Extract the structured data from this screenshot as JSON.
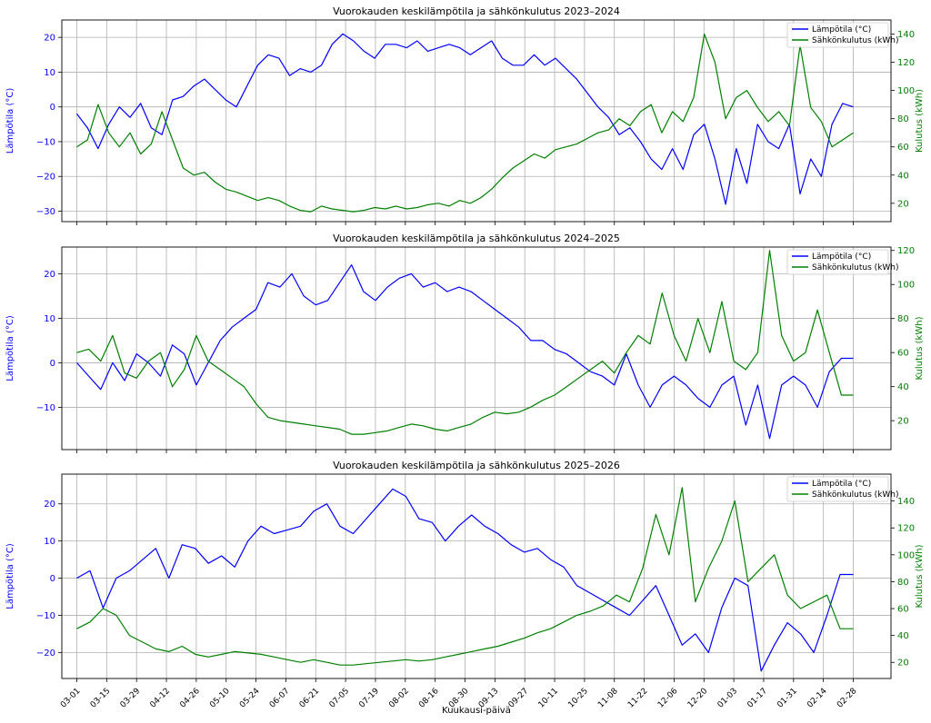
{
  "figure": {
    "xlabel": "Kuukausi-päivä",
    "ylabel_left": "Lämpötila (°C)",
    "ylabel_right": "Kulutus (kWh)",
    "temp_color": "#0000ff",
    "cons_color": "#008000"
  },
  "chart_data": [
    {
      "type": "line",
      "title": "Vuorokauden keskilämpötila ja sähkönkulutus 2023–2024",
      "x_ticks": [
        "03-01",
        "03-15",
        "03-29",
        "04-12",
        "04-26",
        "05-10",
        "05-24",
        "06-07",
        "06-21",
        "07-05",
        "07-19",
        "08-02",
        "08-16",
        "08-30",
        "09-13",
        "09-27",
        "10-11",
        "10-25",
        "11-08",
        "11-22",
        "12-06",
        "12-20",
        "01-03",
        "01-17",
        "01-31",
        "02-14",
        "02-28"
      ],
      "ylim_left": [
        -33,
        25
      ],
      "y_ticks_left": [
        -30,
        -20,
        -10,
        0,
        10,
        20
      ],
      "ylim_right": [
        7,
        150
      ],
      "y_ticks_right": [
        20,
        40,
        60,
        80,
        100,
        120,
        140
      ],
      "grid": true,
      "legend_position": "top-right",
      "series": [
        {
          "name": "Lämpötila (°C)",
          "axis": "left",
          "values": [
            -2,
            -6,
            -12,
            -5,
            0,
            -3,
            1,
            -6,
            -8,
            2,
            3,
            6,
            8,
            5,
            2,
            0,
            6,
            12,
            15,
            14,
            9,
            11,
            10,
            12,
            18,
            21,
            19,
            16,
            14,
            18,
            18,
            17,
            19,
            16,
            17,
            18,
            17,
            15,
            17,
            19,
            14,
            12,
            12,
            15,
            12,
            14,
            11,
            8,
            4,
            0,
            -3,
            -8,
            -6,
            -10,
            -15,
            -18,
            -12,
            -18,
            -8,
            -5,
            -15,
            -28,
            -12,
            -22,
            -5,
            -10,
            -12,
            -5,
            -25,
            -15,
            -20,
            -5,
            1,
            0
          ]
        },
        {
          "name": "Sähkönkulutus (kWh)",
          "axis": "right",
          "values": [
            60,
            65,
            90,
            70,
            60,
            70,
            55,
            62,
            85,
            65,
            45,
            40,
            42,
            35,
            30,
            28,
            25,
            22,
            24,
            22,
            18,
            15,
            14,
            18,
            16,
            15,
            14,
            15,
            17,
            16,
            18,
            16,
            17,
            19,
            20,
            18,
            22,
            20,
            24,
            30,
            38,
            45,
            50,
            55,
            52,
            58,
            60,
            62,
            66,
            70,
            72,
            80,
            75,
            85,
            90,
            70,
            85,
            78,
            95,
            140,
            120,
            80,
            95,
            100,
            88,
            78,
            85,
            75,
            132,
            88,
            78,
            60,
            65,
            70
          ]
        }
      ]
    },
    {
      "type": "line",
      "title": "Vuorokauden keskilämpötila ja sähkönkulutus 2024–2025",
      "x_ticks": [
        "03-01",
        "03-15",
        "03-29",
        "04-12",
        "04-26",
        "05-10",
        "05-24",
        "06-07",
        "06-21",
        "07-05",
        "07-19",
        "08-02",
        "08-16",
        "08-30",
        "09-13",
        "09-27",
        "10-11",
        "10-25",
        "11-08",
        "11-22",
        "12-06",
        "12-20",
        "01-03",
        "01-17",
        "01-31",
        "02-14",
        "02-28"
      ],
      "ylim_left": [
        -19.5,
        26
      ],
      "y_ticks_left": [
        -10,
        0,
        10,
        20
      ],
      "ylim_right": [
        3,
        122
      ],
      "y_ticks_right": [
        20,
        40,
        60,
        80,
        100,
        120
      ],
      "grid": true,
      "legend_position": "top-right",
      "series": [
        {
          "name": "Lämpötila (°C)",
          "axis": "left",
          "values": [
            0,
            -3,
            -6,
            0,
            -4,
            2,
            0,
            -3,
            4,
            2,
            -5,
            0,
            5,
            8,
            10,
            12,
            18,
            17,
            20,
            15,
            13,
            14,
            18,
            22,
            16,
            14,
            17,
            19,
            20,
            17,
            18,
            16,
            17,
            16,
            14,
            12,
            10,
            8,
            5,
            5,
            3,
            2,
            0,
            -2,
            -3,
            -5,
            2,
            -5,
            -10,
            -5,
            -3,
            -5,
            -8,
            -10,
            -5,
            -3,
            -14,
            -5,
            -17,
            -5,
            -3,
            -5,
            -10,
            -2,
            1,
            1
          ]
        },
        {
          "name": "Sähkönkulutus (kWh)",
          "axis": "right",
          "values": [
            60,
            62,
            55,
            70,
            48,
            45,
            55,
            60,
            40,
            50,
            70,
            55,
            50,
            45,
            40,
            30,
            22,
            20,
            19,
            18,
            17,
            16,
            15,
            12,
            12,
            13,
            14,
            16,
            18,
            17,
            15,
            14,
            16,
            18,
            22,
            25,
            24,
            25,
            28,
            32,
            35,
            40,
            45,
            50,
            55,
            48,
            60,
            70,
            65,
            95,
            70,
            55,
            80,
            60,
            90,
            55,
            50,
            60,
            120,
            70,
            55,
            60,
            85,
            60,
            35,
            35
          ]
        }
      ]
    },
    {
      "type": "line",
      "title": "Vuorokauden keskilämpötila ja sähkönkulutus 2025–2026",
      "x_ticks": [
        "03-01",
        "03-15",
        "03-29",
        "04-12",
        "04-26",
        "05-10",
        "05-24",
        "06-07",
        "06-21",
        "07-05",
        "07-19",
        "08-02",
        "08-16",
        "08-30",
        "09-13",
        "09-27",
        "10-11",
        "10-25",
        "11-08",
        "11-22",
        "12-06",
        "12-20",
        "01-03",
        "01-17",
        "01-31",
        "02-14",
        "02-28"
      ],
      "ylim_left": [
        -27,
        28
      ],
      "y_ticks_left": [
        -20,
        -10,
        0,
        10,
        20
      ],
      "ylim_right": [
        8,
        160
      ],
      "y_ticks_right": [
        20,
        40,
        60,
        80,
        100,
        120,
        140
      ],
      "grid": true,
      "legend_position": "top-right",
      "series": [
        {
          "name": "Lämpötila (°C)",
          "axis": "left",
          "values": [
            0,
            2,
            -8,
            0,
            2,
            5,
            8,
            0,
            9,
            8,
            4,
            6,
            3,
            10,
            14,
            12,
            13,
            14,
            18,
            20,
            14,
            12,
            16,
            20,
            24,
            22,
            16,
            15,
            10,
            14,
            17,
            14,
            12,
            9,
            7,
            8,
            5,
            3,
            -2,
            -4,
            -6,
            -8,
            -10,
            -6,
            -2,
            -10,
            -18,
            -15,
            -20,
            -8,
            0,
            -2,
            -25,
            -18,
            -12,
            -15,
            -20,
            -10,
            1,
            1
          ]
        },
        {
          "name": "Sähkönkulutus (kWh)",
          "axis": "right",
          "values": [
            45,
            50,
            60,
            55,
            40,
            35,
            30,
            28,
            32,
            26,
            24,
            26,
            28,
            27,
            26,
            24,
            22,
            20,
            22,
            20,
            18,
            18,
            19,
            20,
            21,
            22,
            21,
            22,
            24,
            26,
            28,
            30,
            32,
            35,
            38,
            42,
            45,
            50,
            55,
            58,
            62,
            70,
            65,
            90,
            130,
            100,
            150,
            65,
            90,
            110,
            140,
            80,
            90,
            100,
            70,
            60,
            65,
            70,
            45,
            45
          ]
        }
      ]
    }
  ]
}
